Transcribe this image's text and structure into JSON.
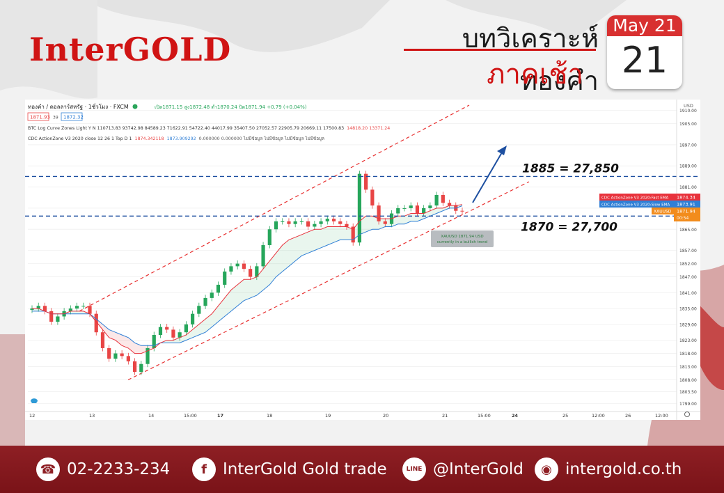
{
  "header": {
    "logo": "InterGOLD",
    "title_line1": "บทวิเคราะห์ทองคำ",
    "title_line2": "ภาคเช้า",
    "calendar_month": "May 21",
    "calendar_day": "21"
  },
  "chart_info": {
    "symbol_line": "ทองคำ / ดอลลาร์สหรัฐ · 1ชั่วโมง · FXCM",
    "ohlc_line": "เปิด1871.15 สูง1872.48 ต่ำ1870.24 ปิด1871.94 +0.79 (+0.04%)",
    "bid": "1871.93",
    "spread": "39",
    "ask": "1872.32",
    "indicator1": "BTC Log Curve Zones Light Y N  110713.83 93742.98 84589.23 71622.91 54722.40 44017.99 35407.50 27052.57 22905.79 20669.11 17500.83",
    "indicator1_red": "14818.20  13371.24",
    "indicator2": "CDC ActionZone V3 2020 close 12 26 1 Top D 1",
    "indicator2_fast": "1874.342118",
    "indicator2_slow": "1873.909292",
    "indicator2_rest": "0.000000  0.000000  ไม่มีข้อมูล  ไม่มีข้อมูล  ไม่มีข้อมูล  ไม่มีข้อมูล",
    "currency": "USD",
    "tooltip_line1": "XAUUSD 1871.94 USD",
    "tooltip_line2": "currently in a bullish trend",
    "legend_fast": "CDC ActionZone V3 2020:Fast EMA",
    "legend_fast_value": "1874.34",
    "legend_slow": "CDC ActionZone V3 2020:Slow EMA",
    "legend_slow_value": "1873.91",
    "legend_symbol": "XAUUSD",
    "legend_symbol_value": "1871.94",
    "countdown": "00:54",
    "colors": {
      "fast": "#e8323c",
      "slow": "#2f7fd6",
      "up": "#26a65b",
      "down": "#e84545",
      "price": "#f28c1c"
    }
  },
  "chart_data": {
    "type": "line",
    "title": "",
    "xlabel": "",
    "ylabel": "",
    "ylim": [
      1796,
      1912
    ],
    "y_ticks": [
      "1910.00",
      "1905.00",
      "1897.00",
      "1889.00",
      "1881.00",
      "1873.00",
      "1865.00",
      "1857.00",
      "1852.00",
      "1847.00",
      "1841.00",
      "1835.00",
      "1829.00",
      "1823.00",
      "1818.00",
      "1813.00",
      "1808.00",
      "1803.50",
      "1799.00"
    ],
    "x_ticks": [
      "12",
      "13",
      "14",
      "15:00",
      "17",
      "18",
      "19",
      "20",
      "21",
      "15:00",
      "24",
      "25",
      "12:00",
      "26",
      "12:00"
    ],
    "x_tick_bold": [
      false,
      false,
      false,
      false,
      true,
      false,
      false,
      false,
      false,
      false,
      true,
      false,
      false,
      false,
      false
    ],
    "series": [
      {
        "values": [
          1835,
          1836,
          1834,
          1830,
          1832,
          1834,
          1835,
          1836,
          1836,
          1833,
          1826,
          1820,
          1816,
          1818,
          1817,
          1815,
          1811,
          1814,
          1820,
          1825,
          1828,
          1827,
          1824,
          1826,
          1829,
          1833,
          1836,
          1839,
          1841,
          1844,
          1849,
          1851,
          1852,
          1850,
          1847,
          1851,
          1859,
          1865,
          1868,
          1868,
          1867,
          1868,
          1868,
          1866,
          1867,
          1868,
          1869,
          1868,
          1867,
          1866,
          1860,
          1886,
          1880,
          1874,
          1868,
          1867,
          1871,
          1873,
          1873,
          1874,
          1871,
          1873,
          1874,
          1878,
          1875,
          1874,
          1872,
          1871.94
        ]
      },
      {
        "values": [
          1835,
          1835,
          1834,
          1833,
          1833,
          1833,
          1834,
          1834,
          1834,
          1833,
          1830,
          1827,
          1824,
          1823,
          1821,
          1820,
          1818,
          1818,
          1819,
          1820,
          1822,
          1823,
          1823,
          1824,
          1825,
          1827,
          1829,
          1831,
          1833,
          1836,
          1839,
          1842,
          1844,
          1846,
          1846,
          1847,
          1850,
          1853,
          1856,
          1859,
          1861,
          1862,
          1863,
          1864,
          1865,
          1865,
          1866,
          1866,
          1866,
          1866,
          1865,
          1868,
          1870,
          1870,
          1869,
          1869,
          1869,
          1870,
          1870,
          1871,
          1871,
          1871,
          1872,
          1873,
          1873,
          1874,
          1874,
          1874.34
        ]
      },
      {
        "values": [
          1834,
          1834,
          1834,
          1833,
          1833,
          1833,
          1833,
          1833,
          1833,
          1833,
          1831,
          1829,
          1827,
          1826,
          1825,
          1824,
          1822,
          1821,
          1821,
          1821,
          1822,
          1822,
          1822,
          1822,
          1823,
          1824,
          1825,
          1826,
          1828,
          1830,
          1832,
          1834,
          1836,
          1838,
          1839,
          1840,
          1842,
          1844,
          1847,
          1849,
          1851,
          1853,
          1855,
          1856,
          1857,
          1858,
          1859,
          1860,
          1861,
          1861,
          1861,
          1863,
          1864,
          1865,
          1865,
          1866,
          1866,
          1867,
          1867,
          1868,
          1868,
          1869,
          1870,
          1871,
          1872,
          1873,
          1873,
          1873.91
        ]
      }
    ],
    "levels": [
      {
        "value": 1885,
        "label": "1885 = 27,850"
      },
      {
        "value": 1870,
        "label": "1870 = 27,700"
      }
    ]
  },
  "footer": {
    "phone": "02-2233-234",
    "facebook": "InterGold Gold trade",
    "line": "@InterGold",
    "website": "intergold.co.th"
  }
}
